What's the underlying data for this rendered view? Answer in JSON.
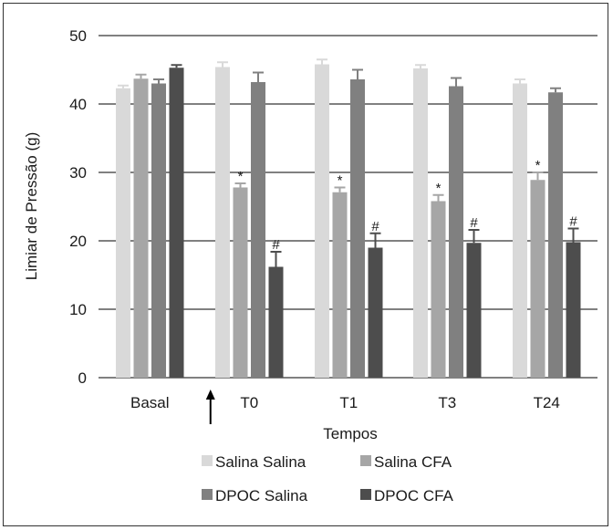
{
  "chart_data": {
    "type": "bar",
    "title": "",
    "xlabel": "Tempos",
    "ylabel": "Limiar de Pressão (g)",
    "ylim": [
      0,
      50
    ],
    "yticks": [
      0,
      10,
      20,
      30,
      40,
      50
    ],
    "grid": "horizontal",
    "legend_position": "bottom",
    "categories": [
      "Basal",
      "T0",
      "T1",
      "T3",
      "T24"
    ],
    "series": [
      {
        "name": "Salina Salina",
        "color": "#d9d9d9",
        "values": [
          42.3,
          45.4,
          45.8,
          45.2,
          43.0
        ],
        "errors": [
          0.4,
          0.7,
          0.7,
          0.5,
          0.6
        ],
        "markers": [
          "",
          "",
          "",
          "",
          ""
        ]
      },
      {
        "name": "Salina CFA",
        "color": "#a6a6a6",
        "values": [
          43.7,
          27.8,
          27.1,
          25.8,
          28.9
        ],
        "errors": [
          0.6,
          0.6,
          0.7,
          0.9,
          1.1
        ],
        "markers": [
          "",
          "*",
          "*",
          "*",
          "*"
        ]
      },
      {
        "name": "DPOC Salina",
        "color": "#808080",
        "values": [
          43.0,
          43.2,
          43.6,
          42.6,
          41.7
        ],
        "errors": [
          0.6,
          1.4,
          1.4,
          1.2,
          0.6
        ],
        "markers": [
          "",
          "",
          "",
          "",
          ""
        ]
      },
      {
        "name": "DPOC CFA",
        "color": "#4d4d4d",
        "values": [
          45.3,
          16.2,
          19.0,
          19.7,
          19.8
        ],
        "errors": [
          0.4,
          2.2,
          2.1,
          1.9,
          2.0
        ],
        "markers": [
          "",
          "#",
          "#",
          "#",
          "#"
        ]
      }
    ],
    "annotation": {
      "type": "arrow",
      "between_categories": [
        "Basal",
        "T0"
      ]
    }
  }
}
